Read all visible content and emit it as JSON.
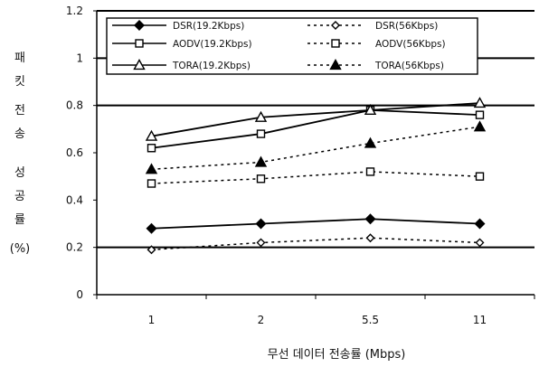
{
  "chart_data": {
    "type": "line",
    "categories": [
      "1",
      "2",
      "5.5",
      "11"
    ],
    "xlabel": "무선 데이터 전송률 (Mbps)",
    "ylabel": [
      "패",
      "킷",
      "전",
      "송",
      "성",
      "공",
      "률",
      "(%)"
    ],
    "ylim": [
      0,
      1.2
    ],
    "yticks": [
      "0",
      "0.2",
      "0.4",
      "0.6",
      "0.8",
      "1",
      "1.2"
    ],
    "grid": "horizontal at 0.2, 0.8, 1.0, 1.2",
    "legend_position": "top-left inside plot",
    "series": [
      {
        "name": "DSR(19.2Kbps)",
        "values": [
          0.28,
          0.3,
          0.32,
          0.3
        ],
        "marker": "diamond",
        "dash": "solid"
      },
      {
        "name": "DSR(56Kbps)",
        "values": [
          0.19,
          0.22,
          0.24,
          0.22
        ],
        "marker": "diamond",
        "dash": "dashed"
      },
      {
        "name": "AODV(19.2Kbps)",
        "values": [
          0.62,
          0.68,
          0.78,
          0.76
        ],
        "marker": "square",
        "dash": "solid"
      },
      {
        "name": "AODV(56Kbps)",
        "values": [
          0.47,
          0.49,
          0.52,
          0.5
        ],
        "marker": "square",
        "dash": "dashed"
      },
      {
        "name": "TORA(19.2Kbps)",
        "values": [
          0.67,
          0.75,
          0.78,
          0.81
        ],
        "marker": "triangle",
        "dash": "solid"
      },
      {
        "name": "TORA(56Kbps)",
        "values": [
          0.53,
          0.56,
          0.64,
          0.71
        ],
        "marker": "triangle",
        "dash": "dashed"
      }
    ],
    "colors": {
      "line": "#000000",
      "background": "#ffffff"
    }
  }
}
